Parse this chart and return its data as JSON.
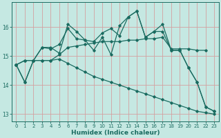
{
  "xlabel": "Humidex (Indice chaleur)",
  "background_color": "#c5e8e2",
  "grid_color_v": "#d4a0a0",
  "grid_color_h": "#d4a0a0",
  "line_color": "#1a6b60",
  "xlim": [
    -0.5,
    23.5
  ],
  "ylim": [
    12.75,
    16.85
  ],
  "yticks": [
    13,
    14,
    15,
    16
  ],
  "xticks": [
    0,
    1,
    2,
    3,
    4,
    5,
    6,
    7,
    8,
    9,
    10,
    11,
    12,
    13,
    14,
    15,
    16,
    17,
    18,
    19,
    20,
    21,
    22,
    23
  ],
  "s1": [
    14.7,
    14.1,
    14.85,
    15.3,
    15.3,
    15.1,
    16.1,
    15.85,
    15.55,
    15.2,
    15.65,
    15.05,
    16.05,
    16.35,
    16.55,
    15.65,
    15.85,
    15.85,
    15.2,
    15.2,
    14.6,
    14.1,
    13.25,
    13.1
  ],
  "s2": [
    14.7,
    14.85,
    14.85,
    15.3,
    15.25,
    15.4,
    15.95,
    15.6,
    15.55,
    15.5,
    15.8,
    15.95,
    15.7,
    16.35,
    16.55,
    15.65,
    15.85,
    16.1,
    15.2,
    15.2,
    14.6,
    14.1,
    13.25,
    13.1
  ],
  "s3": [
    14.7,
    14.85,
    14.85,
    14.85,
    14.85,
    15.05,
    15.3,
    15.35,
    15.4,
    15.45,
    15.5,
    15.5,
    15.5,
    15.55,
    15.55,
    15.6,
    15.6,
    15.65,
    15.25,
    15.25,
    15.25,
    15.2,
    15.2,
    null
  ],
  "s4": [
    14.7,
    14.1,
    14.85,
    14.85,
    14.85,
    14.9,
    14.75,
    14.6,
    14.45,
    14.3,
    14.2,
    14.1,
    14.0,
    13.9,
    13.8,
    13.7,
    13.6,
    13.5,
    13.4,
    13.3,
    13.2,
    13.1,
    13.05,
    13.0
  ]
}
